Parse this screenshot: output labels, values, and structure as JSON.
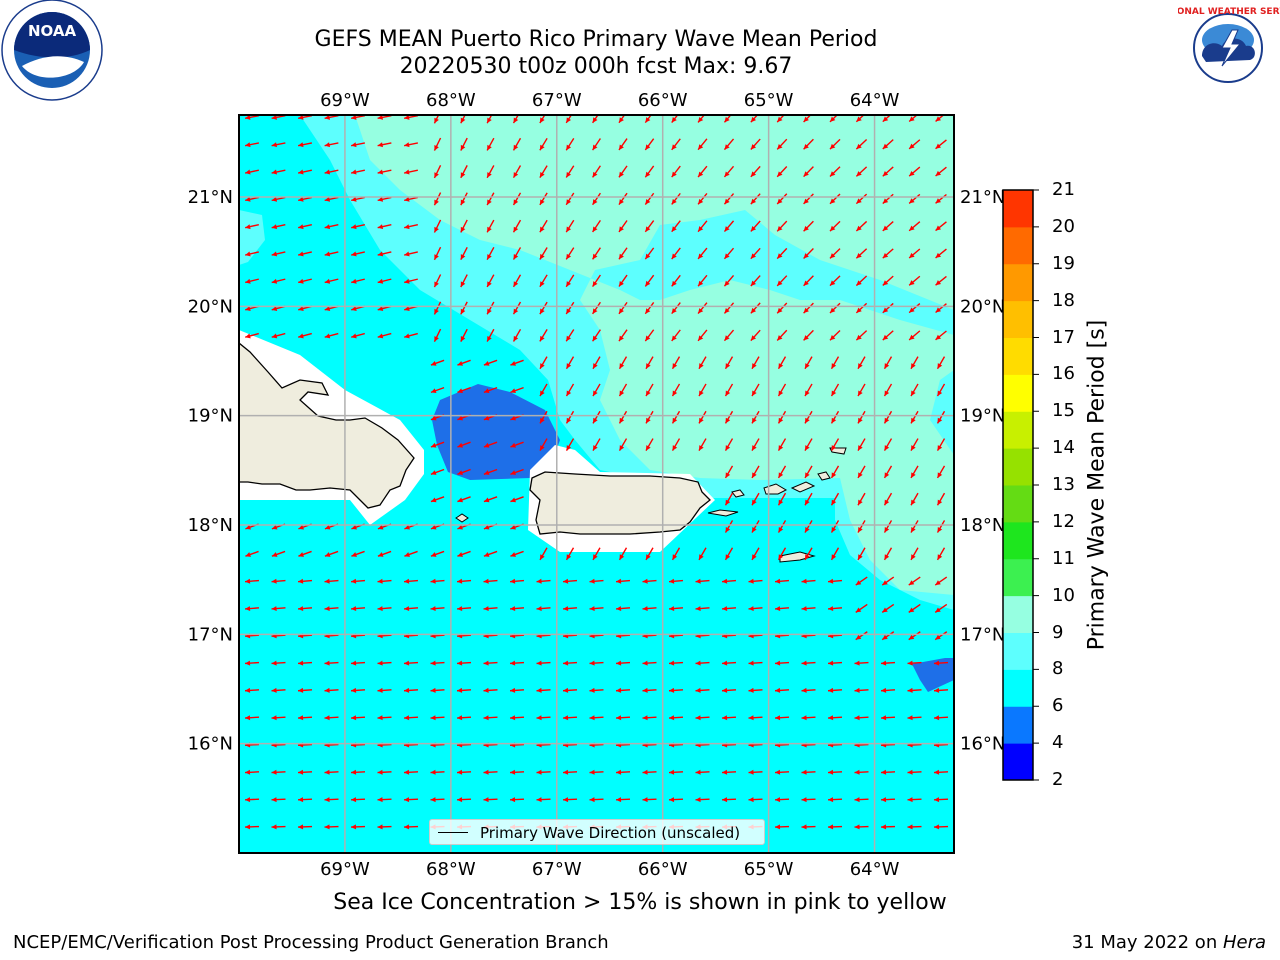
{
  "title": {
    "line1": "GEFS MEAN Puerto Rico Primary Wave Mean Period",
    "line2": "20220530 t00z 000h fcst   Max: 9.67"
  },
  "map": {
    "lon_labels": [
      "69°W",
      "68°W",
      "67°W",
      "66°W",
      "65°W",
      "64°W"
    ],
    "lat_labels": [
      "21°N",
      "20°N",
      "19°N",
      "18°N",
      "17°N",
      "16°N"
    ],
    "lon_range": [
      -70.0,
      -63.25
    ],
    "lat_range": [
      15.0,
      21.75
    ],
    "regions": [
      "Hispaniola",
      "Puerto Rico",
      "Virgin Islands",
      "St. Croix",
      "Mona Island"
    ],
    "legend": "Primary Wave Direction (unscaled)",
    "colors": {
      "land": "#efedde",
      "coast": "#000000",
      "grid": "#b0b0b0",
      "arrow": "#ff0000"
    }
  },
  "colorbar": {
    "label": "Primary Wave Mean Period [s]",
    "ticks": [
      "2",
      "4",
      "6",
      "8",
      "9",
      "10",
      "11",
      "12",
      "13",
      "14",
      "15",
      "16",
      "17",
      "18",
      "19",
      "20",
      "21"
    ],
    "colors": [
      "#0000ff",
      "#0a78ff",
      "#00ffff",
      "#5dfffe",
      "#96ffe1",
      "#3cf050",
      "#1ee61e",
      "#64dc14",
      "#96e100",
      "#c8f000",
      "#ffff00",
      "#ffdc00",
      "#ffbf00",
      "#ff9900",
      "#ff6a00",
      "#ff3500",
      "#ff0000"
    ]
  },
  "subtitle": "Sea Ice Concentration > 15% is shown in pink to yellow",
  "footer": {
    "left": "NCEP/EMC/Verification Post Processing Product Generation Branch",
    "right_text": "31 May 2022 on ",
    "right_host": "Hera"
  },
  "logos": {
    "left": "NOAA",
    "right": "NATIONAL WEATHER SERVICE"
  }
}
